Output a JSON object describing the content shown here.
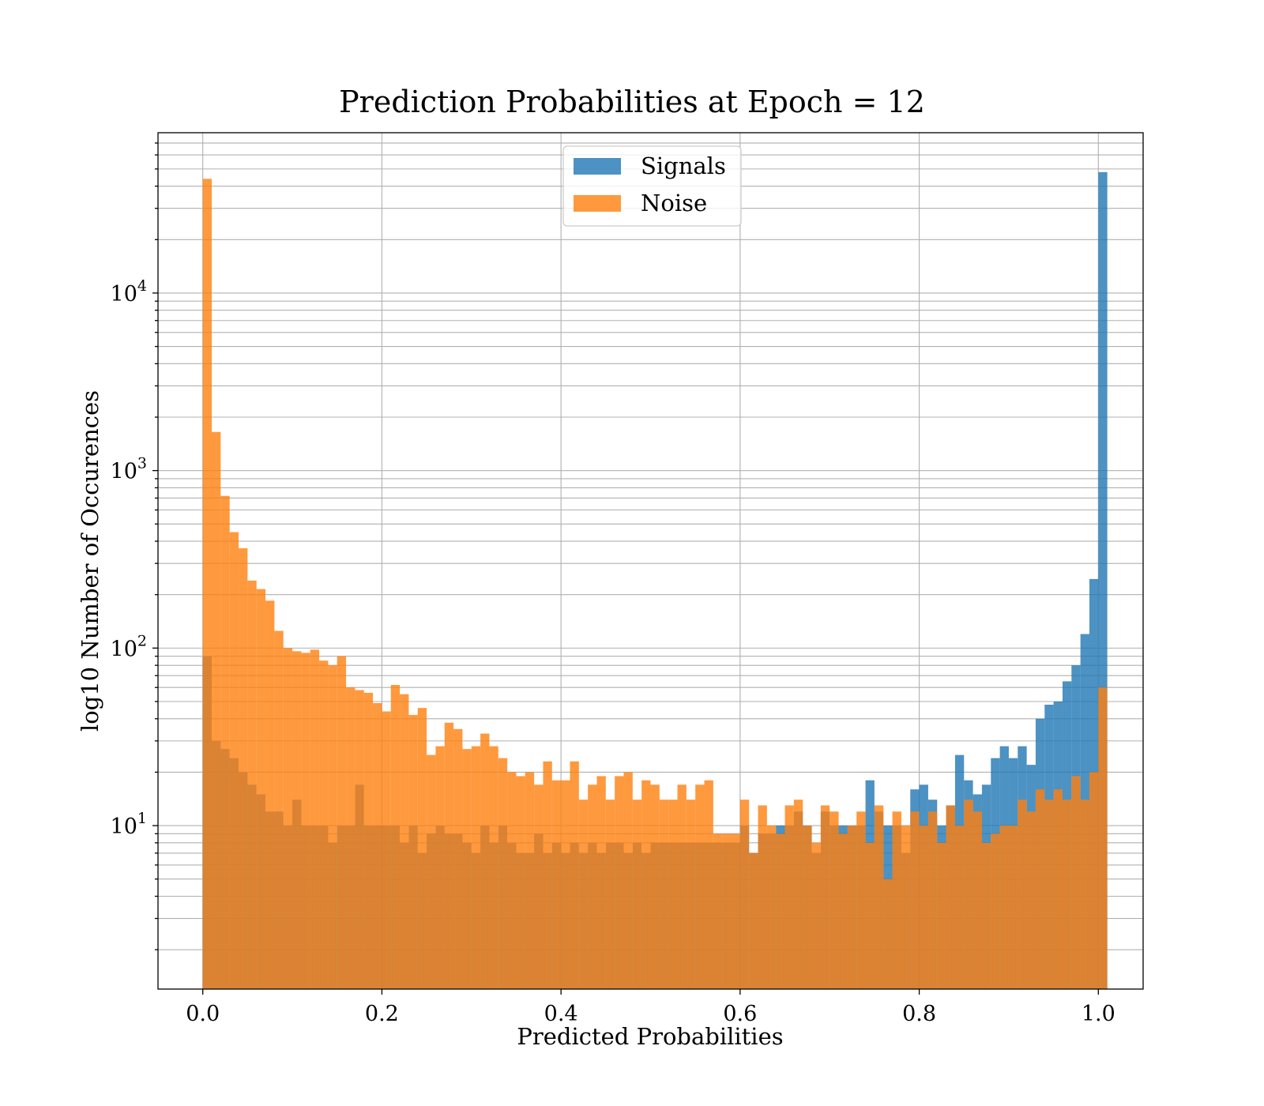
{
  "chart_data": {
    "type": "bar",
    "title": "Prediction Probabilities at Epoch = 12",
    "xlabel": "Predicted Probabilities",
    "ylabel": "log10 Number of Occurences",
    "xlim": [
      -0.05,
      1.05
    ],
    "ylim": [
      1.2,
      80000
    ],
    "yscale": "log",
    "grid": true,
    "legend_position": "upper center",
    "x_ticks": [
      0.0,
      0.2,
      0.4,
      0.6,
      0.8,
      1.0
    ],
    "x_tick_labels": [
      "0.0",
      "0.2",
      "0.4",
      "0.6",
      "0.8",
      "1.0"
    ],
    "y_ticks": [
      {
        "value": 10,
        "base": "10",
        "exp": "1"
      },
      {
        "value": 100,
        "base": "10",
        "exp": "2"
      },
      {
        "value": 1000,
        "base": "10",
        "exp": "3"
      },
      {
        "value": 10000,
        "base": "10",
        "exp": "4"
      }
    ],
    "bin_edges_start": 0.0,
    "bin_width": 0.01,
    "series": [
      {
        "name": "Signals",
        "color": "#1f77b4",
        "opacity": 0.8,
        "values": [
          90,
          30,
          27,
          24,
          20,
          17,
          15,
          12,
          12,
          10,
          14,
          10,
          10,
          10,
          8,
          10,
          10,
          17,
          10,
          10,
          10,
          10,
          8,
          10,
          7,
          9,
          10,
          9,
          9,
          8,
          7,
          10,
          8,
          10,
          8,
          7,
          7,
          9,
          7,
          8,
          7,
          8,
          7,
          8,
          7,
          8,
          8,
          7,
          8,
          7,
          8,
          8,
          8,
          8,
          8,
          8,
          8,
          8,
          8,
          8,
          10,
          7,
          9,
          9,
          10,
          10,
          12,
          10,
          7,
          12,
          10,
          10,
          10,
          10,
          18,
          12,
          10,
          10,
          7,
          16,
          17,
          14,
          10,
          13,
          25,
          18,
          15,
          17,
          24,
          28,
          24,
          28,
          22,
          40,
          48,
          50,
          65,
          80,
          120,
          245,
          48000
        ]
      },
      {
        "name": "Noise",
        "color": "#ff7f0e",
        "opacity": 0.8,
        "values": [
          44000,
          1650,
          720,
          450,
          365,
          240,
          215,
          185,
          125,
          100,
          96,
          94,
          98,
          85,
          80,
          90,
          60,
          58,
          56,
          49,
          44,
          62,
          55,
          42,
          46,
          25,
          28,
          38,
          35,
          27,
          28,
          33,
          28,
          24,
          20,
          19,
          20,
          17,
          23,
          18,
          18,
          23,
          14,
          17,
          19,
          14,
          19,
          20,
          14,
          18,
          17,
          14,
          14,
          17,
          14,
          17,
          18,
          9,
          9,
          9,
          14,
          7,
          13,
          10,
          9,
          13,
          14,
          10,
          8,
          13,
          12,
          9,
          10,
          12,
          8,
          13,
          5,
          12,
          10,
          12,
          10,
          12,
          8,
          13,
          10,
          14,
          12,
          8,
          9,
          10,
          10,
          14,
          12,
          16,
          14,
          16,
          14,
          19,
          14,
          20,
          60
        ]
      }
    ]
  }
}
